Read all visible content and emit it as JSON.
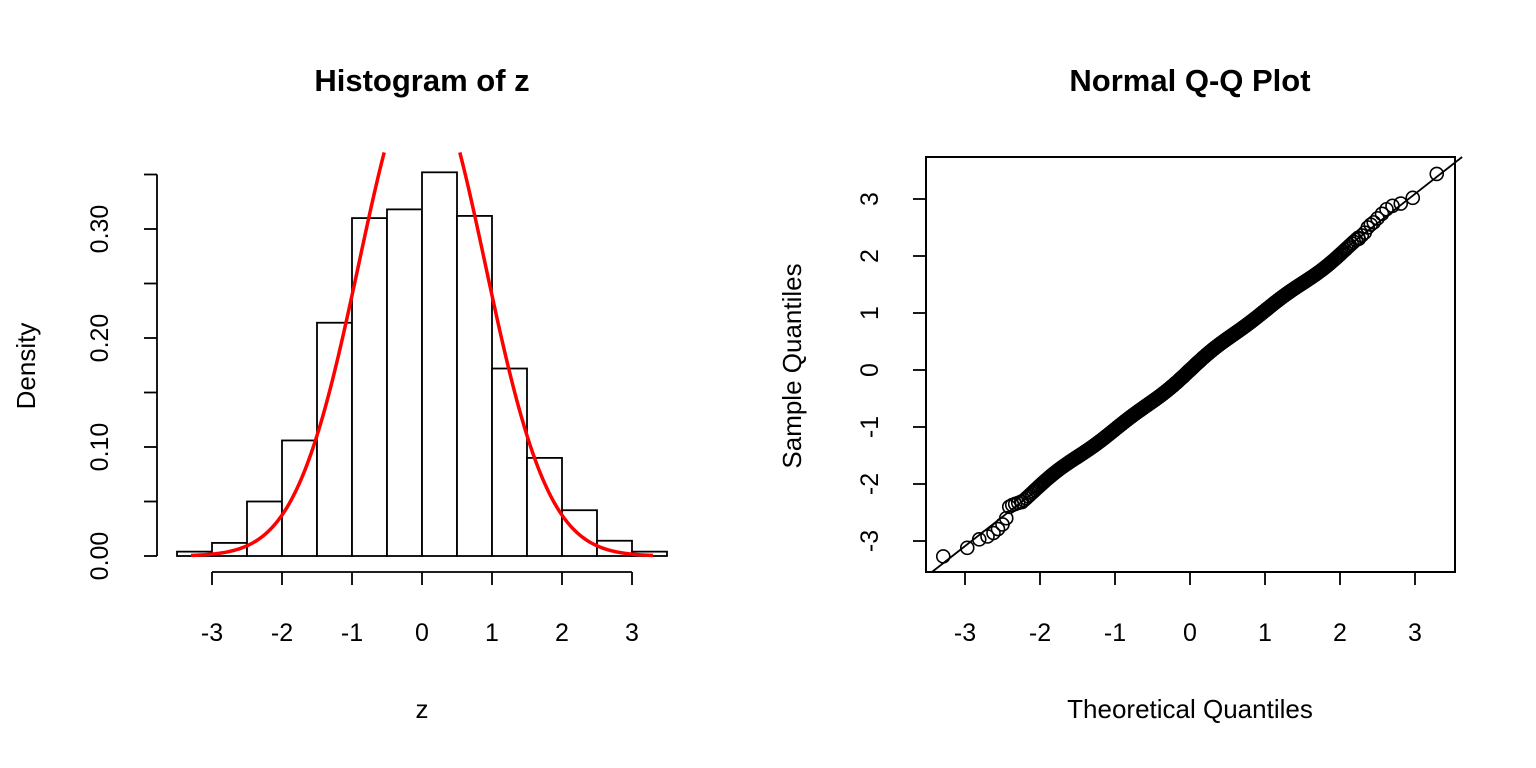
{
  "chart_data": [
    {
      "type": "bar",
      "subtype": "histogram",
      "title": "Histogram of z",
      "xlabel": "z",
      "ylabel": "Density",
      "xlim": [
        -3.5,
        3.5
      ],
      "ylim": [
        0,
        0.35
      ],
      "x_ticks": [
        "-3",
        "-2",
        "-1",
        "0",
        "1",
        "2",
        "3"
      ],
      "y_ticks": [
        "0.00",
        "0.10",
        "0.20",
        "0.30"
      ],
      "bins": [
        {
          "from": -3.5,
          "to": -3.0,
          "density": 0.004
        },
        {
          "from": -3.0,
          "to": -2.5,
          "density": 0.012
        },
        {
          "from": -2.5,
          "to": -2.0,
          "density": 0.05
        },
        {
          "from": -2.0,
          "to": -1.5,
          "density": 0.106
        },
        {
          "from": -1.5,
          "to": -1.0,
          "density": 0.214
        },
        {
          "from": -1.0,
          "to": -0.5,
          "density": 0.31
        },
        {
          "from": -0.5,
          "to": 0.0,
          "density": 0.318
        },
        {
          "from": 0.0,
          "to": 0.5,
          "density": 0.352
        },
        {
          "from": 0.5,
          "to": 1.0,
          "density": 0.312
        },
        {
          "from": 1.0,
          "to": 1.5,
          "density": 0.172
        },
        {
          "from": 1.5,
          "to": 2.0,
          "density": 0.09
        },
        {
          "from": 2.0,
          "to": 2.5,
          "density": 0.042
        },
        {
          "from": 2.5,
          "to": 3.0,
          "density": 0.014
        },
        {
          "from": 3.0,
          "to": 3.5,
          "density": 0.004
        }
      ],
      "curve": {
        "type": "normal-density",
        "mean": 0,
        "sd": 0.9,
        "color": "#ff0000"
      },
      "grid": false,
      "box": false
    },
    {
      "type": "scatter",
      "subtype": "normal-qq",
      "title": "Normal Q-Q Plot",
      "xlabel": "Theoretical Quantiles",
      "ylabel": "Sample Quantiles",
      "xlim": [
        -3.3,
        3.5
      ],
      "ylim": [
        -3.5,
        3.75
      ],
      "x_ticks": [
        "-3",
        "-2",
        "-1",
        "0",
        "1",
        "2",
        "3"
      ],
      "y_ticks": [
        "-3",
        "-2",
        "-1",
        "0",
        "1",
        "2",
        "3"
      ],
      "n_points": 1000,
      "tail_points": [
        {
          "x": -3.29,
          "y": -3.27
        },
        {
          "x": -2.97,
          "y": -3.12
        },
        {
          "x": -2.81,
          "y": -2.97
        },
        {
          "x": -2.7,
          "y": -2.92
        },
        {
          "x": -2.62,
          "y": -2.86
        },
        {
          "x": -2.56,
          "y": -2.79
        },
        {
          "x": -2.5,
          "y": -2.71
        },
        {
          "x": -2.45,
          "y": -2.6
        },
        {
          "x": -2.41,
          "y": -2.4
        },
        {
          "x": -2.37,
          "y": -2.37
        },
        {
          "x": -2.33,
          "y": -2.35
        },
        {
          "x": -2.29,
          "y": -2.33
        },
        {
          "x": -2.25,
          "y": -2.31
        },
        {
          "x": 2.25,
          "y": 2.3
        },
        {
          "x": 2.29,
          "y": 2.36
        },
        {
          "x": 2.33,
          "y": 2.41
        },
        {
          "x": 2.37,
          "y": 2.5
        },
        {
          "x": 2.41,
          "y": 2.55
        },
        {
          "x": 2.45,
          "y": 2.59
        },
        {
          "x": 2.5,
          "y": 2.66
        },
        {
          "x": 2.56,
          "y": 2.74
        },
        {
          "x": 2.62,
          "y": 2.82
        },
        {
          "x": 2.7,
          "y": 2.88
        },
        {
          "x": 2.81,
          "y": 2.92
        },
        {
          "x": 2.97,
          "y": 3.02
        },
        {
          "x": 3.29,
          "y": 3.44
        }
      ],
      "reference_line": {
        "intercept": 0.0,
        "slope": 1.03
      },
      "grid": false,
      "box": true
    }
  ]
}
